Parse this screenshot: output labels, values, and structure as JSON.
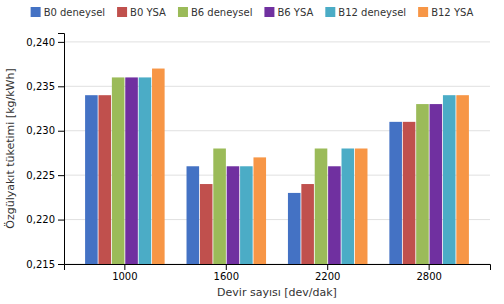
{
  "chart_data": {
    "type": "bar",
    "xlabel": "Devir sayısı [dev/dak]",
    "ylabel": "Özgülyakıt tüketimi  [kg/kWh]",
    "categories": [
      "1000",
      "1600",
      "2200",
      "2800"
    ],
    "series": [
      {
        "name": "B0 deneysel",
        "color": "#4472C4",
        "values": [
          0.234,
          0.226,
          0.223,
          0.231
        ]
      },
      {
        "name": "B0 YSA",
        "color": "#C0504D",
        "values": [
          0.234,
          0.224,
          0.224,
          0.231
        ]
      },
      {
        "name": "B6 deneysel",
        "color": "#9BBB59",
        "values": [
          0.236,
          0.228,
          0.228,
          0.233
        ]
      },
      {
        "name": "B6 YSA",
        "color": "#7030A0",
        "values": [
          0.236,
          0.226,
          0.226,
          0.233
        ]
      },
      {
        "name": "B12 deneysel",
        "color": "#4BACC6",
        "values": [
          0.236,
          0.226,
          0.228,
          0.234
        ]
      },
      {
        "name": "B12 YSA",
        "color": "#F79646",
        "values": [
          0.237,
          0.227,
          0.228,
          0.234
        ]
      }
    ],
    "ylim": [
      0.215,
      0.241
    ],
    "yticks": [
      {
        "value": 0.215,
        "label": "0,215"
      },
      {
        "value": 0.22,
        "label": "0,220"
      },
      {
        "value": 0.225,
        "label": "0,225"
      },
      {
        "value": 0.23,
        "label": "0,230"
      },
      {
        "value": 0.235,
        "label": "0,235"
      },
      {
        "value": 0.24,
        "label": "0,240"
      }
    ],
    "grid": true,
    "legend": "top"
  }
}
